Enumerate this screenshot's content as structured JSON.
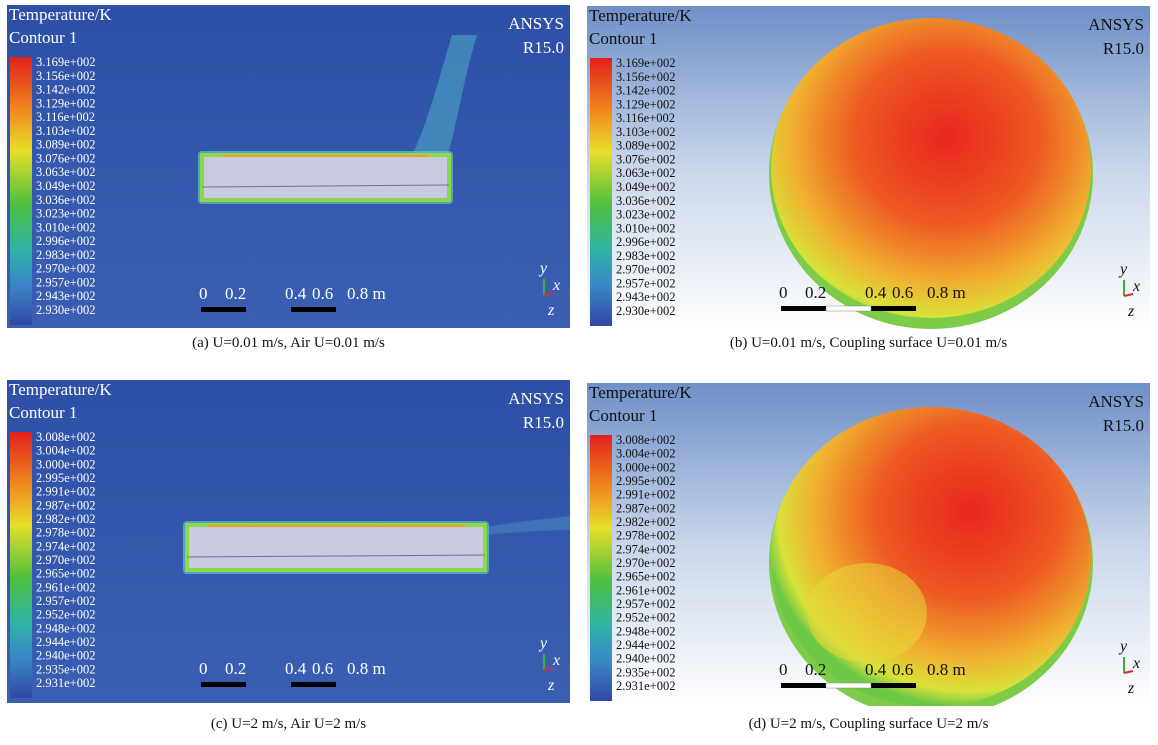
{
  "panels": [
    {
      "title": "Temperature/K",
      "subtitle": "Contour 1",
      "legend": [
        "3.169e+002",
        "3.156e+002",
        "3.142e+002",
        "3.129e+002",
        "3.116e+002",
        "3.103e+002",
        "3.089e+002",
        "3.076e+002",
        "3.063e+002",
        "3.049e+002",
        "3.036e+002",
        "3.023e+002",
        "3.010e+002",
        "2.996e+002",
        "2.983e+002",
        "2.970e+002",
        "2.957e+002",
        "2.943e+002",
        "2.930e+002"
      ],
      "brand": "ANSYS",
      "version": "R15.0",
      "scale": [
        "0",
        "0.2",
        "0.4",
        "0.6",
        "0.8 m"
      ],
      "axes": [
        "y",
        "x",
        "z"
      ],
      "caption": "(a) U=0.01 m/s, Air U=0.01 m/s"
    },
    {
      "title": "Temperature/K",
      "subtitle": "Contour 1",
      "legend": [
        "3.169e+002",
        "3.156e+002",
        "3.142e+002",
        "3.129e+002",
        "3.116e+002",
        "3.103e+002",
        "3.089e+002",
        "3.076e+002",
        "3.063e+002",
        "3.049e+002",
        "3.036e+002",
        "3.023e+002",
        "3.010e+002",
        "2.996e+002",
        "2.983e+002",
        "2.970e+002",
        "2.957e+002",
        "2.943e+002",
        "2.930e+002"
      ],
      "brand": "ANSYS",
      "version": "R15.0",
      "scale": [
        "0",
        "0.2",
        "0.4",
        "0.6",
        "0.8 m"
      ],
      "axes": [
        "y",
        "x",
        "z"
      ],
      "caption": "(b) U=0.01 m/s, Coupling surface U=0.01 m/s"
    },
    {
      "title": "Temperature/K",
      "subtitle": "Contour 1",
      "legend": [
        "3.008e+002",
        "3.004e+002",
        "3.000e+002",
        "2.995e+002",
        "2.991e+002",
        "2.987e+002",
        "2.982e+002",
        "2.978e+002",
        "2.974e+002",
        "2.970e+002",
        "2.965e+002",
        "2.961e+002",
        "2.957e+002",
        "2.952e+002",
        "2.948e+002",
        "2.944e+002",
        "2.940e+002",
        "2.935e+002",
        "2.931e+002"
      ],
      "brand": "ANSYS",
      "version": "R15.0",
      "scale": [
        "0",
        "0.2",
        "0.4",
        "0.6",
        "0.8 m"
      ],
      "axes": [
        "y",
        "x",
        "z"
      ],
      "caption": "(c) U=2 m/s, Air U=2 m/s"
    },
    {
      "title": "Temperature/K",
      "subtitle": "Contour 1",
      "legend": [
        "3.008e+002",
        "3.004e+002",
        "3.000e+002",
        "2.995e+002",
        "2.991e+002",
        "2.987e+002",
        "2.982e+002",
        "2.978e+002",
        "2.974e+002",
        "2.970e+002",
        "2.965e+002",
        "2.961e+002",
        "2.957e+002",
        "2.952e+002",
        "2.948e+002",
        "2.944e+002",
        "2.940e+002",
        "2.935e+002",
        "2.931e+002"
      ],
      "brand": "ANSYS",
      "version": "R15.0",
      "scale": [
        "0",
        "0.2",
        "0.4",
        "0.6",
        "0.8 m"
      ],
      "axes": [
        "y",
        "x",
        "z"
      ],
      "caption": "(d) U=2 m/s, Coupling surface U=2 m/s"
    }
  ]
}
